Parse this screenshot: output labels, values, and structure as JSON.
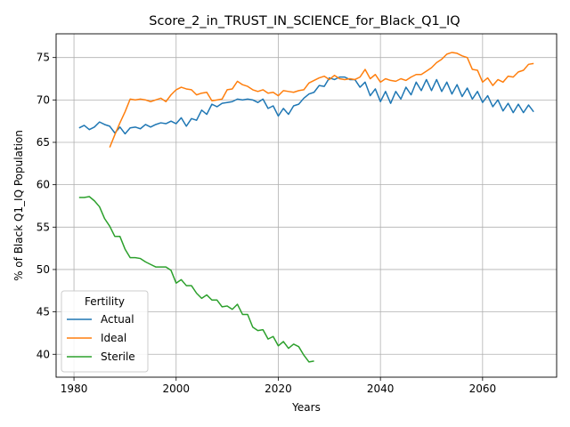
{
  "chart_data": {
    "type": "line",
    "title": "Score_2_in_TRUST_IN_SCIENCE_for_Black_Q1_IQ",
    "xlabel": "Years",
    "ylabel": "% of Black Q1_IQ Population",
    "xlim": [
      1976.5,
      2074.5
    ],
    "ylim": [
      37.3,
      77.8
    ],
    "xticks": [
      1980,
      2000,
      2020,
      2040,
      2060
    ],
    "yticks": [
      40,
      45,
      50,
      55,
      60,
      65,
      70,
      75
    ],
    "grid": true,
    "legend": {
      "title": "Fertility",
      "placement": "lower-left"
    },
    "series": [
      {
        "name": "Actual",
        "color": "#1f77b4",
        "x": [
          1981,
          1982,
          1983,
          1984,
          1985,
          1986,
          1987,
          1988,
          1989,
          1990,
          1991,
          1992,
          1993,
          1994,
          1995,
          1996,
          1997,
          1998,
          1999,
          2000,
          2001,
          2002,
          2003,
          2004,
          2005,
          2006,
          2007,
          2008,
          2009,
          2010,
          2011,
          2012,
          2013,
          2014,
          2015,
          2016,
          2017,
          2018,
          2019,
          2020,
          2021,
          2022,
          2023,
          2024,
          2025,
          2026,
          2027,
          2028,
          2029,
          2030,
          2031,
          2032,
          2033,
          2034,
          2035,
          2036,
          2037,
          2038,
          2039,
          2040,
          2041,
          2042,
          2043,
          2044,
          2045,
          2046,
          2047,
          2048,
          2049,
          2050,
          2051,
          2052,
          2053,
          2054,
          2055,
          2056,
          2057,
          2058,
          2059,
          2060,
          2061,
          2062,
          2063,
          2064,
          2065,
          2066,
          2067,
          2068,
          2069,
          2070
        ],
        "y": [
          66.7,
          67.0,
          66.5,
          66.8,
          67.4,
          67.1,
          66.9,
          66.1,
          66.8,
          66.0,
          66.7,
          66.8,
          66.6,
          67.1,
          66.8,
          67.1,
          67.3,
          67.2,
          67.5,
          67.2,
          67.9,
          66.9,
          67.8,
          67.6,
          68.8,
          68.3,
          69.5,
          69.2,
          69.6,
          69.7,
          69.8,
          70.1,
          70.0,
          70.1,
          70.0,
          69.7,
          70.1,
          69.0,
          69.3,
          68.1,
          69.0,
          68.3,
          69.3,
          69.5,
          70.2,
          70.7,
          70.9,
          71.7,
          71.6,
          72.6,
          72.4,
          72.7,
          72.7,
          72.4,
          72.4,
          71.5,
          72.1,
          70.5,
          71.3,
          69.8,
          71.0,
          69.6,
          71.0,
          70.1,
          71.5,
          70.6,
          72.1,
          71.1,
          72.4,
          71.1,
          72.4,
          71.0,
          72.1,
          70.7,
          71.8,
          70.4,
          71.4,
          70.1,
          71.0,
          69.7,
          70.5,
          69.2,
          70.0,
          68.7,
          69.6,
          68.5,
          69.5,
          68.5,
          69.4,
          68.6
        ]
      },
      {
        "name": "Ideal",
        "color": "#ff7f0e",
        "x": [
          1987,
          1988,
          1989,
          1990,
          1991,
          1992,
          1993,
          1994,
          1995,
          1996,
          1997,
          1998,
          1999,
          2000,
          2001,
          2002,
          2003,
          2004,
          2005,
          2006,
          2007,
          2008,
          2009,
          2010,
          2011,
          2012,
          2013,
          2014,
          2015,
          2016,
          2017,
          2018,
          2019,
          2020,
          2021,
          2022,
          2023,
          2024,
          2025,
          2026,
          2027,
          2028,
          2029,
          2030,
          2031,
          2032,
          2033,
          2034,
          2035,
          2036,
          2037,
          2038,
          2039,
          2040,
          2041,
          2042,
          2043,
          2044,
          2045,
          2046,
          2047,
          2048,
          2049,
          2050,
          2051,
          2052,
          2053,
          2054,
          2055,
          2056,
          2057,
          2058,
          2059,
          2060,
          2061,
          2062,
          2063,
          2064,
          2065,
          2066,
          2067,
          2068,
          2069,
          2070
        ],
        "y": [
          64.4,
          65.9,
          67.3,
          68.6,
          70.1,
          70.0,
          70.1,
          70.0,
          69.8,
          70.0,
          70.2,
          69.8,
          70.6,
          71.2,
          71.5,
          71.3,
          71.2,
          70.6,
          70.8,
          70.9,
          69.9,
          70.0,
          70.1,
          71.2,
          71.3,
          72.2,
          71.8,
          71.6,
          71.2,
          71.0,
          71.2,
          70.8,
          70.9,
          70.5,
          71.1,
          71.0,
          70.9,
          71.1,
          71.2,
          72.0,
          72.3,
          72.6,
          72.8,
          72.4,
          72.9,
          72.5,
          72.4,
          72.5,
          72.4,
          72.7,
          73.6,
          72.5,
          73.0,
          72.1,
          72.5,
          72.3,
          72.2,
          72.5,
          72.3,
          72.7,
          73.0,
          73.0,
          73.4,
          73.8,
          74.4,
          74.8,
          75.4,
          75.6,
          75.5,
          75.2,
          75.0,
          73.6,
          73.5,
          72.1,
          72.6,
          71.7,
          72.4,
          72.1,
          72.8,
          72.7,
          73.3,
          73.5,
          74.2,
          74.3
        ]
      },
      {
        "name": "Sterile",
        "color": "#2ca02c",
        "x": [
          1981,
          1982,
          1983,
          1984,
          1985,
          1986,
          1987,
          1988,
          1989,
          1990,
          1991,
          1992,
          1993,
          1994,
          1995,
          1996,
          1997,
          1998,
          1999,
          2000,
          2001,
          2002,
          2003,
          2004,
          2005,
          2006,
          2007,
          2008,
          2009,
          2010,
          2011,
          2012,
          2013,
          2014,
          2015,
          2016,
          2017,
          2018,
          2019,
          2020,
          2021,
          2022,
          2023,
          2024,
          2025,
          2026,
          2027
        ],
        "y": [
          58.5,
          58.5,
          58.6,
          58.1,
          57.4,
          56.0,
          55.1,
          53.9,
          53.9,
          52.4,
          51.4,
          51.4,
          51.3,
          50.9,
          50.6,
          50.3,
          50.3,
          50.3,
          49.9,
          48.4,
          48.8,
          48.1,
          48.1,
          47.2,
          46.6,
          47.0,
          46.4,
          46.4,
          45.6,
          45.7,
          45.3,
          45.9,
          44.7,
          44.7,
          43.2,
          42.8,
          42.9,
          41.8,
          42.1,
          41.0,
          41.5,
          40.7,
          41.2,
          40.9,
          39.9,
          39.1,
          39.2
        ]
      }
    ]
  }
}
